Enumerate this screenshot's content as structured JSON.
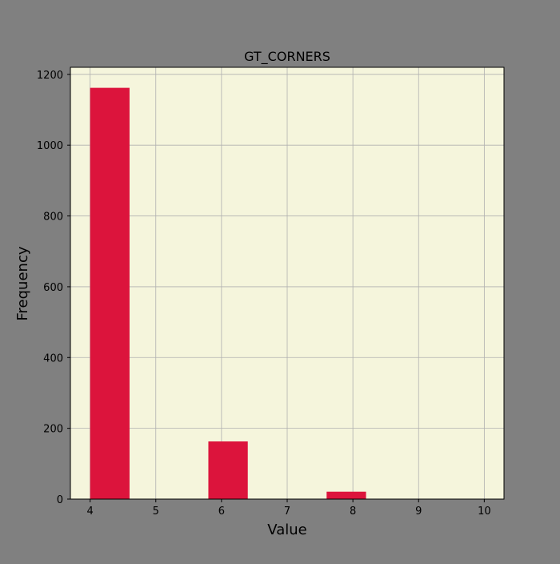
{
  "colors": {
    "figure_background": "#808080",
    "plot_background": "#f5f5dc",
    "bar_fill": "#dc143c",
    "grid": "#b0b0b0",
    "axis": "#000000"
  },
  "chart_data": {
    "type": "bar",
    "title": "GT_CORNERS",
    "xlabel": "Value",
    "ylabel": "Frequency",
    "xlim": [
      3.7,
      10.3
    ],
    "ylim": [
      0,
      1220
    ],
    "xticks": [
      4,
      5,
      6,
      7,
      8,
      9,
      10
    ],
    "yticks": [
      0,
      200,
      400,
      600,
      800,
      1000,
      1200
    ],
    "grid": true,
    "bins": [
      {
        "x0": 4.0,
        "x1": 4.6,
        "value": 1162
      },
      {
        "x0": 4.6,
        "x1": 5.2,
        "value": 0
      },
      {
        "x0": 5.2,
        "x1": 5.8,
        "value": 0
      },
      {
        "x0": 5.8,
        "x1": 6.4,
        "value": 163
      },
      {
        "x0": 6.4,
        "x1": 7.0,
        "value": 0
      },
      {
        "x0": 7.0,
        "x1": 7.6,
        "value": 0
      },
      {
        "x0": 7.6,
        "x1": 8.2,
        "value": 21
      },
      {
        "x0": 8.2,
        "x1": 8.8,
        "value": 0
      },
      {
        "x0": 8.8,
        "x1": 9.4,
        "value": 0
      },
      {
        "x0": 9.4,
        "x1": 10.0,
        "value": 0
      }
    ]
  }
}
